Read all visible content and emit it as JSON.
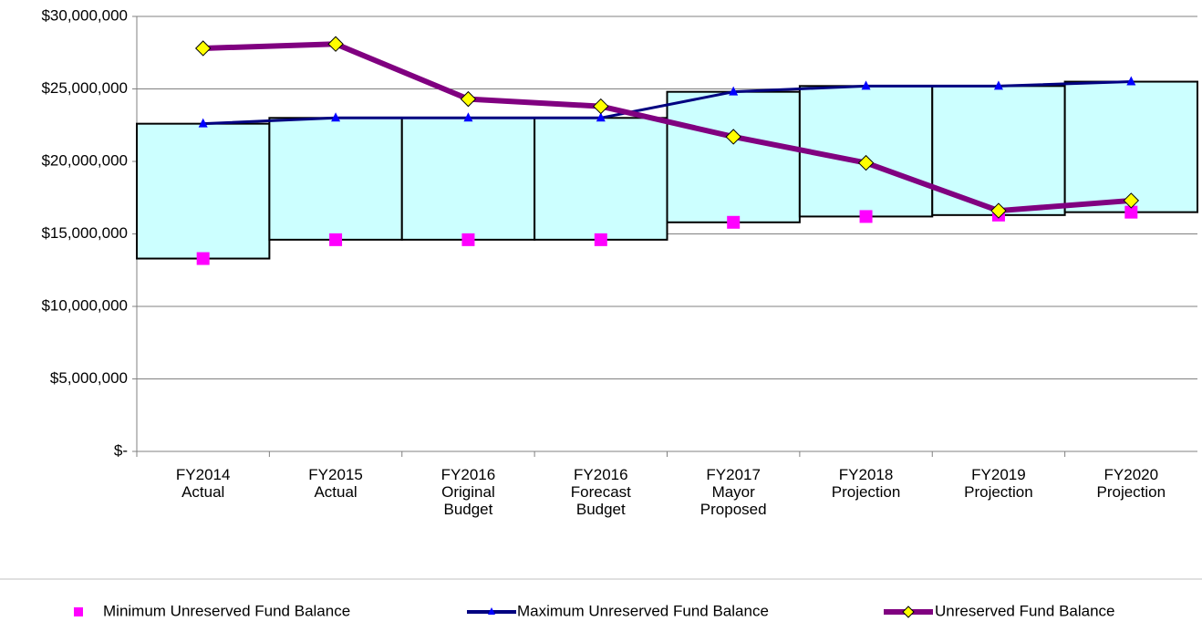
{
  "chart_data": {
    "type": "combo",
    "categories": [
      "FY2014 Actual",
      "FY2015 Actual",
      "FY2016 Original Budget",
      "FY2016 Forecast Budget",
      "FY2017 Mayor Proposed",
      "FY2018 Projection",
      "FY2019 Projection",
      "FY2020 Projection"
    ],
    "series": [
      {
        "name": "Minimum Unreserved Fund Balance",
        "color": "#ff00ff",
        "marker": "square",
        "line": false,
        "values": [
          13300000,
          14600000,
          14600000,
          14600000,
          15800000,
          16200000,
          16300000,
          16500000
        ]
      },
      {
        "name": "Maximum Unreserved Fund Balance",
        "color": "#000080",
        "marker_color": "#0000ff",
        "marker": "triangle",
        "line": true,
        "values": [
          22600000,
          23000000,
          23000000,
          23000000,
          24800000,
          25200000,
          25200000,
          25500000
        ]
      },
      {
        "name": "Unreserved Fund Balance",
        "color": "#800080",
        "marker_color": "#ffff00",
        "marker": "diamond",
        "line": true,
        "values": [
          27800000,
          28100000,
          24300000,
          23800000,
          21700000,
          19900000,
          16600000,
          17300000
        ]
      }
    ],
    "band_color": "#ccffff",
    "ylim": [
      0,
      30000000
    ],
    "yticks": [
      {
        "value": 0,
        "label": "$-"
      },
      {
        "value": 5000000,
        "label": "$5,000,000"
      },
      {
        "value": 10000000,
        "label": "$10,000,000"
      },
      {
        "value": 15000000,
        "label": "$15,000,000"
      },
      {
        "value": 20000000,
        "label": "$20,000,000"
      },
      {
        "value": 25000000,
        "label": "$25,000,000"
      },
      {
        "value": 30000000,
        "label": "$30,000,000"
      }
    ],
    "grid": true
  }
}
